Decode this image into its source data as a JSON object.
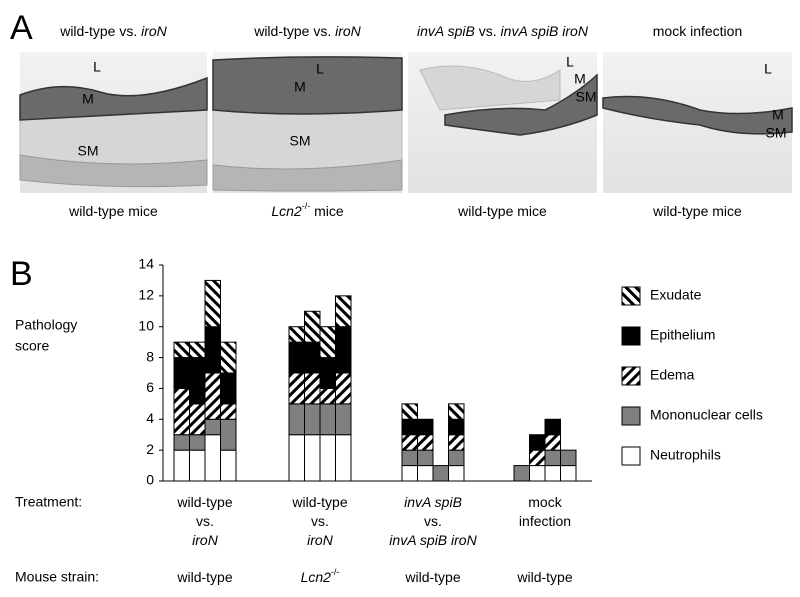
{
  "panel_a": {
    "letter": "A",
    "panels": [
      {
        "title": [
          {
            "text": "wild-type vs."
          },
          {
            "text": "iroN",
            "italic": true
          }
        ],
        "labels": [
          "L",
          "M",
          "SM"
        ],
        "strain": [
          {
            "text": "wild-type mice"
          }
        ]
      },
      {
        "title": [
          {
            "text": "wild-type vs."
          },
          {
            "text": "iroN",
            "italic": true
          }
        ],
        "labels": [
          "L",
          "M",
          "SM"
        ],
        "strain": [
          {
            "text": "Lcn2",
            "italic": true
          },
          {
            "text": "-/-",
            "sup": true
          },
          {
            "text": "mice"
          }
        ]
      },
      {
        "title": [
          {
            "text": "invA spiB",
            "italic": true
          },
          {
            "text": "vs."
          },
          {
            "text": "invA spiB iroN",
            "italic": true
          }
        ],
        "labels": [
          "L",
          "M",
          "SM"
        ],
        "strain": [
          {
            "text": "wild-type mice"
          }
        ]
      },
      {
        "title": [
          {
            "text": "mock infection"
          }
        ],
        "labels": [
          "L",
          "M",
          "SM"
        ],
        "strain": [
          {
            "text": "wild-type mice"
          }
        ]
      }
    ]
  },
  "chart_data": {
    "type": "bar",
    "letter": "B",
    "stacked": true,
    "ylabel": [
      "Pathology",
      "score"
    ],
    "ylim": [
      0,
      14
    ],
    "yticks": [
      0,
      2,
      4,
      6,
      8,
      10,
      12,
      14
    ],
    "categories": [
      null,
      null,
      null,
      null,
      null,
      null,
      null,
      null,
      null,
      null,
      null,
      null,
      null,
      null,
      null,
      null
    ],
    "series": [
      {
        "name": "Neutrophils",
        "color": "#ffffff",
        "values": [
          2,
          2,
          3,
          2,
          3,
          3,
          3,
          3,
          1,
          1,
          0,
          1,
          0,
          1,
          1,
          1
        ]
      },
      {
        "name": "Mononuclear cells",
        "color": "#808080",
        "values": [
          1,
          1,
          1,
          2,
          2,
          2,
          2,
          2,
          1,
          1,
          1,
          1,
          1,
          0,
          1,
          1
        ]
      },
      {
        "name": "Edema",
        "color": "#ffffff",
        "hatch": "forward",
        "values": [
          3,
          2,
          3,
          1,
          2,
          2,
          1,
          2,
          1,
          1,
          0,
          1,
          0,
          1,
          1,
          0
        ]
      },
      {
        "name": "Epithelium",
        "color": "#000000",
        "values": [
          2,
          3,
          3,
          2,
          2,
          2,
          2,
          3,
          1,
          1,
          0,
          1,
          0,
          1,
          1,
          0
        ]
      },
      {
        "name": "Exudate",
        "color": "#ffffff",
        "hatch": "backward",
        "values": [
          1,
          1,
          3,
          2,
          1,
          2,
          2,
          2,
          1,
          0,
          0,
          1,
          0,
          0,
          0,
          0
        ]
      }
    ],
    "legend_order": "reversed",
    "row_labels": {
      "treatment": "Treatment:",
      "strain": "Mouse strain:"
    },
    "groups": [
      {
        "treatment": [
          [
            {
              "text": "wild-type"
            }
          ],
          [
            {
              "text": "vs."
            }
          ],
          [
            {
              "text": "iroN",
              "italic": true
            }
          ]
        ],
        "strain": [
          {
            "text": "wild-type"
          }
        ]
      },
      {
        "treatment": [
          [
            {
              "text": "wild-type"
            }
          ],
          [
            {
              "text": "vs."
            }
          ],
          [
            {
              "text": "iroN",
              "italic": true
            }
          ]
        ],
        "strain": [
          {
            "text": "Lcn2",
            "italic": true
          },
          {
            "text": "-/-",
            "sup": true
          }
        ]
      },
      {
        "treatment": [
          [
            {
              "text": "invA spiB",
              "italic": true
            }
          ],
          [
            {
              "text": "vs."
            }
          ],
          [
            {
              "text": "invA spiB iroN",
              "italic": true
            }
          ]
        ],
        "strain": [
          {
            "text": "wild-type"
          }
        ]
      },
      {
        "treatment": [
          [
            {
              "text": "mock"
            }
          ],
          [
            {
              "text": "infection"
            }
          ]
        ],
        "strain": [
          {
            "text": "wild-type"
          }
        ]
      }
    ]
  }
}
